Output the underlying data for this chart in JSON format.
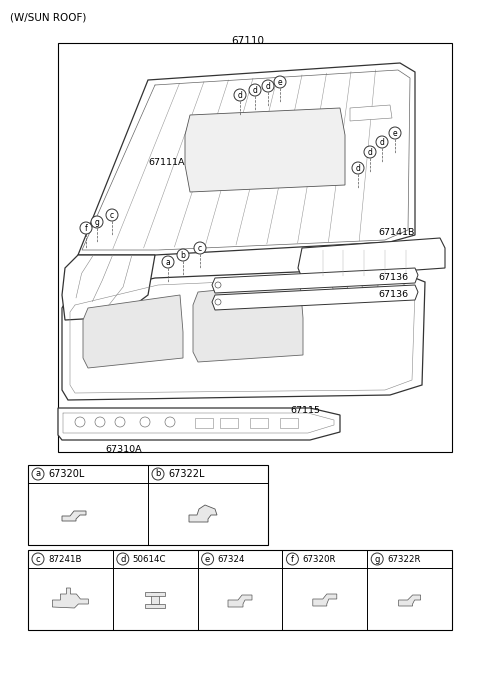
{
  "title": "(W/SUN ROOF)",
  "part_number": "67110",
  "bg": "#ffffff",
  "lc": "#333333",
  "lw": 0.8,
  "figsize": [
    4.8,
    6.94
  ],
  "dpi": 100,
  "callout_items_row0": [
    {
      "label": "a",
      "code": "67320L"
    },
    {
      "label": "b",
      "code": "67322L"
    }
  ],
  "callout_items_row1": [
    {
      "label": "c",
      "code": "87241B"
    },
    {
      "label": "d",
      "code": "50614C"
    },
    {
      "label": "e",
      "code": "67324"
    },
    {
      "label": "f",
      "code": "67320R"
    },
    {
      "label": "g",
      "code": "67322R"
    }
  ]
}
